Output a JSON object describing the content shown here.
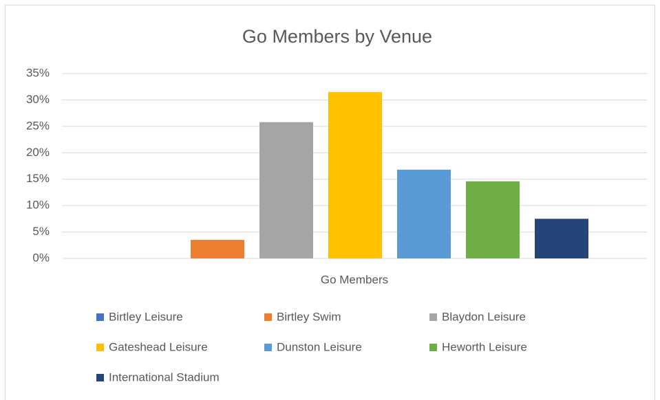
{
  "chart_data": {
    "type": "bar",
    "title": "Go Members by Venue",
    "categories": [
      "Go Members"
    ],
    "series": [
      {
        "name": "Birtley Leisure",
        "color": "#4472c4",
        "values": [
          0
        ]
      },
      {
        "name": "Birtley Swim",
        "color": "#ed7d31",
        "values": [
          3.5
        ]
      },
      {
        "name": "Blaydon Leisure",
        "color": "#a5a5a5",
        "values": [
          25.8
        ]
      },
      {
        "name": "Gateshead Leisure",
        "color": "#ffc000",
        "values": [
          31.5
        ]
      },
      {
        "name": "Dunston Leisure",
        "color": "#5b9bd5",
        "values": [
          16.8
        ]
      },
      {
        "name": "Heworth Leisure",
        "color": "#70ad47",
        "values": [
          14.6
        ]
      },
      {
        "name": "International Stadium",
        "color": "#264478",
        "values": [
          7.5
        ]
      }
    ],
    "ylim": [
      0,
      35
    ],
    "yticks": [
      {
        "value": 0,
        "label": "0%"
      },
      {
        "value": 5,
        "label": "5%"
      },
      {
        "value": 10,
        "label": "10%"
      },
      {
        "value": 15,
        "label": "15%"
      },
      {
        "value": 20,
        "label": "20%"
      },
      {
        "value": 25,
        "label": "25%"
      },
      {
        "value": 30,
        "label": "30%"
      },
      {
        "value": 35,
        "label": "35%"
      }
    ],
    "grid": true,
    "legend": "bottom"
  }
}
